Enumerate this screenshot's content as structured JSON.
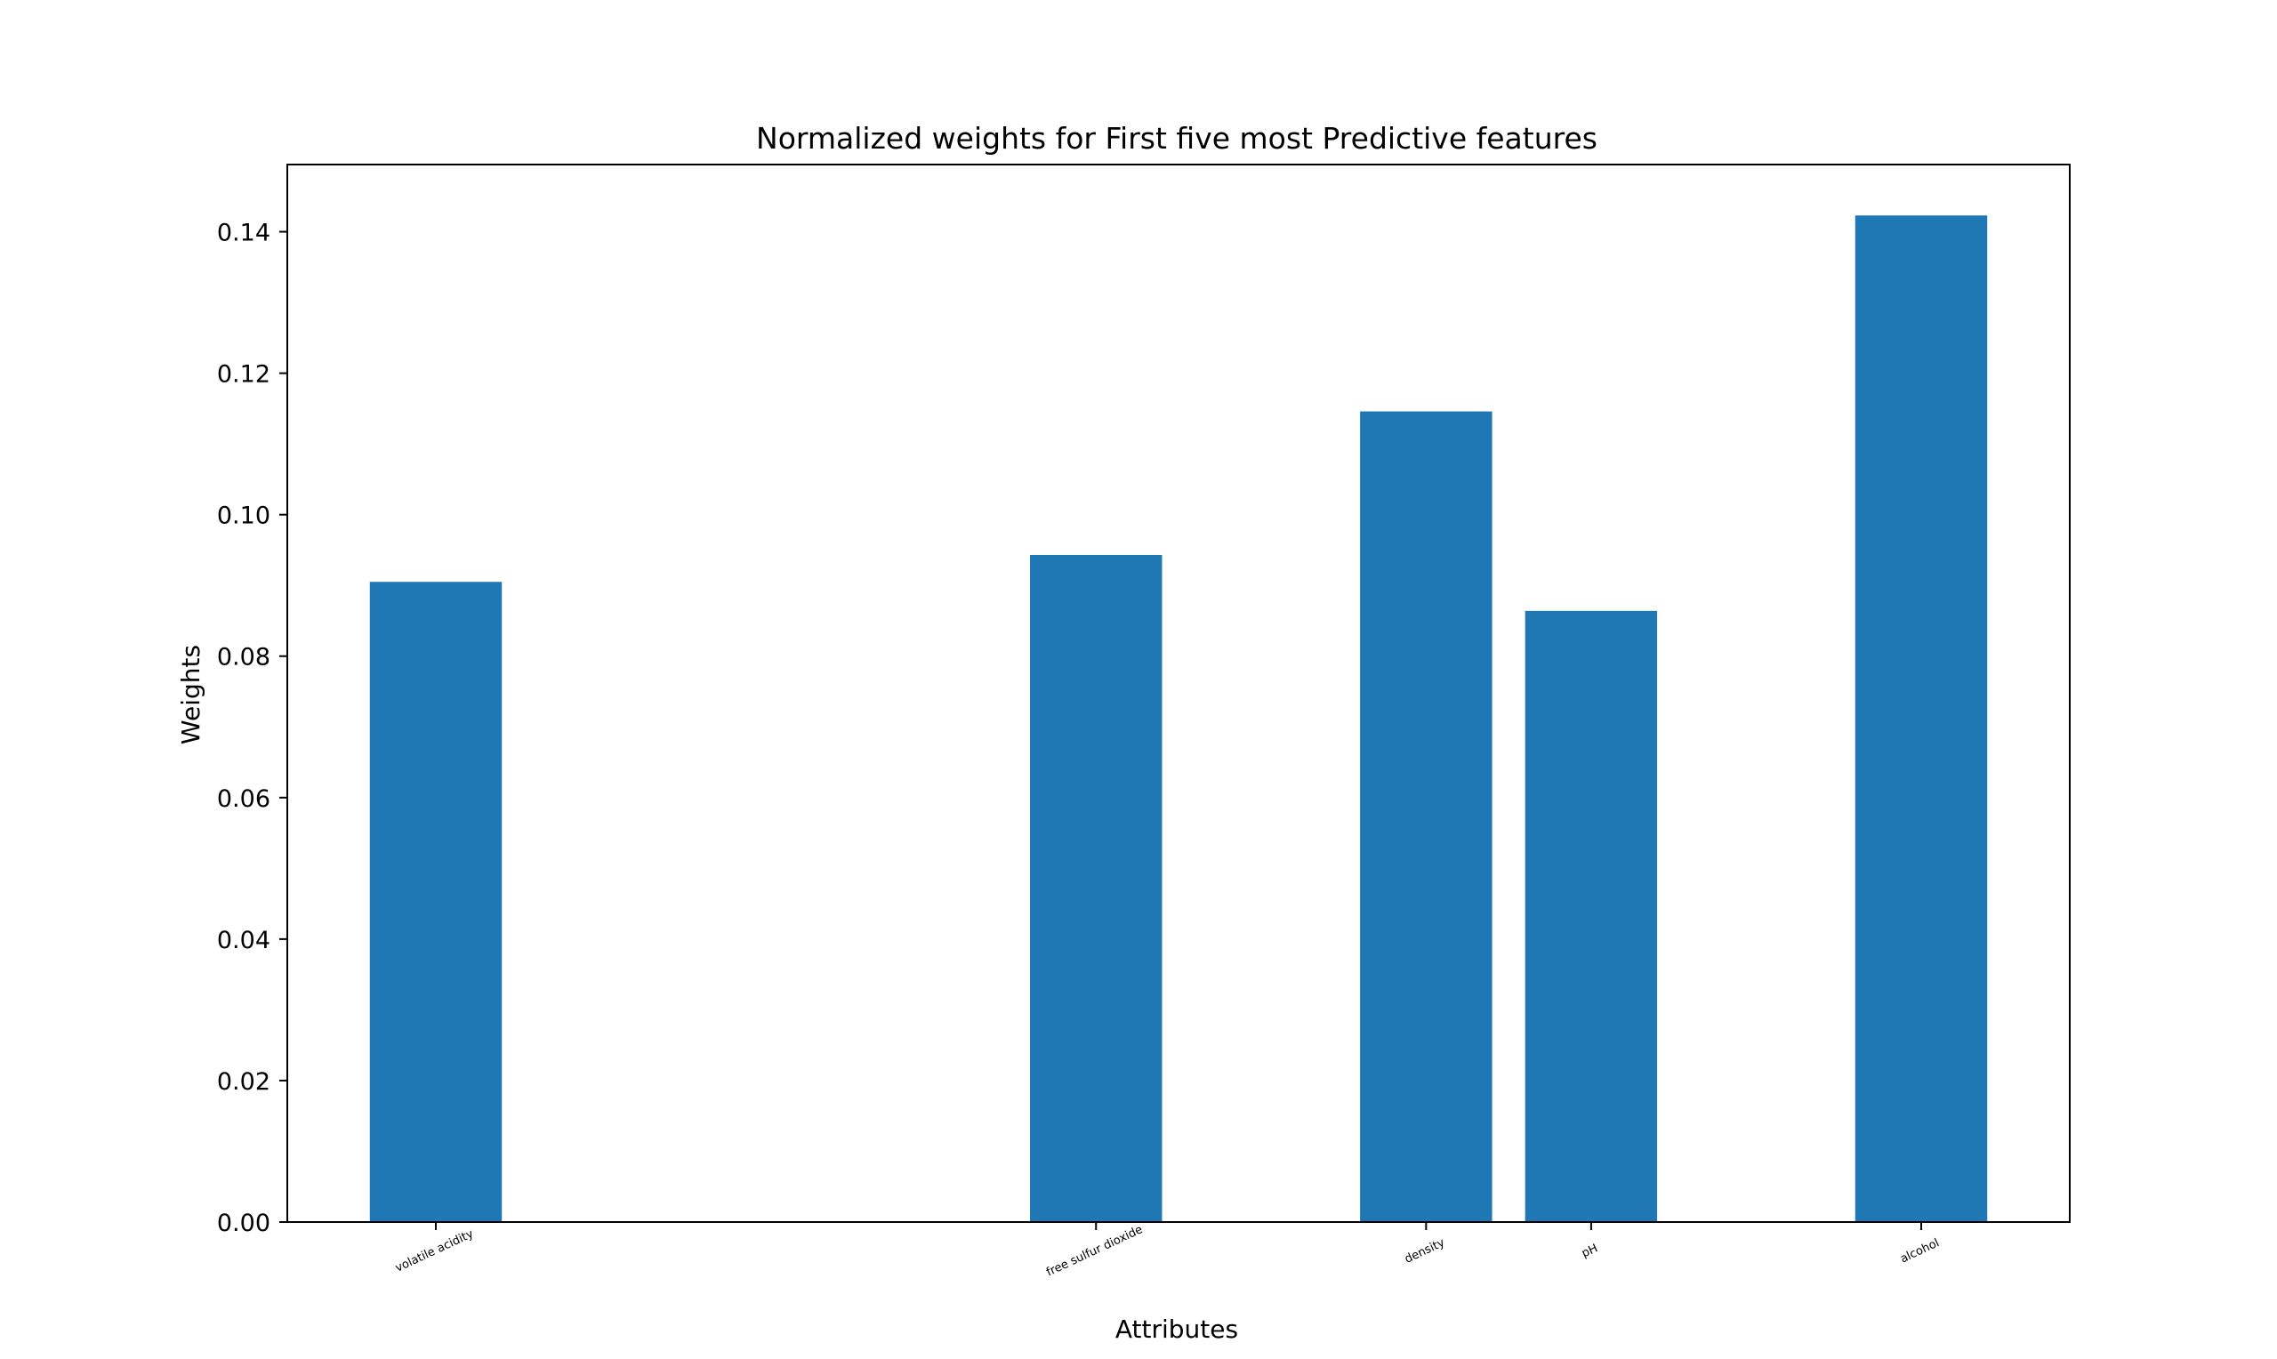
{
  "chart_data": {
    "type": "bar",
    "title": "Normalized weights for First five most Predictive features",
    "xlabel": "Attributes",
    "ylabel": "Weights",
    "x_positions": [
      1,
      5,
      7,
      8,
      10
    ],
    "categories": [
      "volatile acidity",
      "free sulfur dioxide",
      "density",
      "pH",
      "alcohol"
    ],
    "values": [
      0.0905,
      0.0943,
      0.1146,
      0.0864,
      0.1423
    ],
    "xlim": [
      0.1,
      10.9
    ],
    "ylim": [
      0,
      0.1495
    ],
    "yticks": [
      "0.00",
      "0.02",
      "0.04",
      "0.06",
      "0.08",
      "0.10",
      "0.12",
      "0.14"
    ],
    "bar_width_units": 0.8,
    "grid": false,
    "colors": {
      "bar": "#1f77b4",
      "axis": "#000000",
      "background": "#ffffff"
    }
  }
}
